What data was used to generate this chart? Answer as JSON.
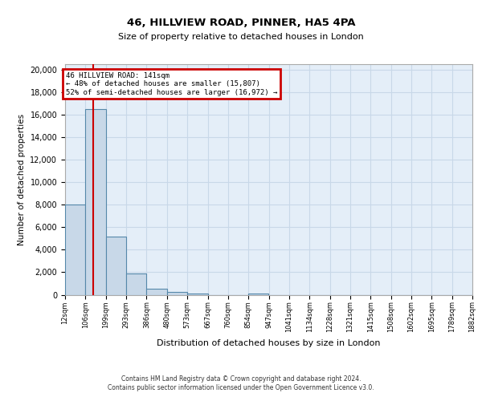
{
  "title1": "46, HILLVIEW ROAD, PINNER, HA5 4PA",
  "title2": "Size of property relative to detached houses in London",
  "xlabel": "Distribution of detached houses by size in London",
  "ylabel": "Number of detached properties",
  "bin_labels": [
    "12sqm",
    "106sqm",
    "199sqm",
    "293sqm",
    "386sqm",
    "480sqm",
    "573sqm",
    "667sqm",
    "760sqm",
    "854sqm",
    "947sqm",
    "1041sqm",
    "1134sqm",
    "1228sqm",
    "1321sqm",
    "1415sqm",
    "1508sqm",
    "1602sqm",
    "1695sqm",
    "1789sqm",
    "1882sqm"
  ],
  "bin_edges": [
    12,
    106,
    199,
    293,
    386,
    480,
    573,
    667,
    760,
    854,
    947,
    1041,
    1134,
    1228,
    1321,
    1415,
    1508,
    1602,
    1695,
    1789,
    1882
  ],
  "bar_heights": [
    8000,
    16500,
    5200,
    1900,
    530,
    230,
    130,
    0,
    0,
    130,
    0,
    0,
    0,
    0,
    0,
    0,
    0,
    0,
    0,
    0
  ],
  "bar_color": "#c8d8e8",
  "bar_edgecolor": "#5588aa",
  "grid_color": "#c8d8e8",
  "background_color": "#e4eef8",
  "red_line_x": 141,
  "annotation_text": "46 HILLVIEW ROAD: 141sqm\n← 48% of detached houses are smaller (15,807)\n52% of semi-detached houses are larger (16,972) →",
  "annotation_box_color": "#ffffff",
  "annotation_border_color": "#cc0000",
  "ylim": [
    0,
    20500
  ],
  "yticks": [
    0,
    2000,
    4000,
    6000,
    8000,
    10000,
    12000,
    14000,
    16000,
    18000,
    20000
  ],
  "footer1": "Contains HM Land Registry data © Crown copyright and database right 2024.",
  "footer2": "Contains public sector information licensed under the Open Government Licence v3.0."
}
